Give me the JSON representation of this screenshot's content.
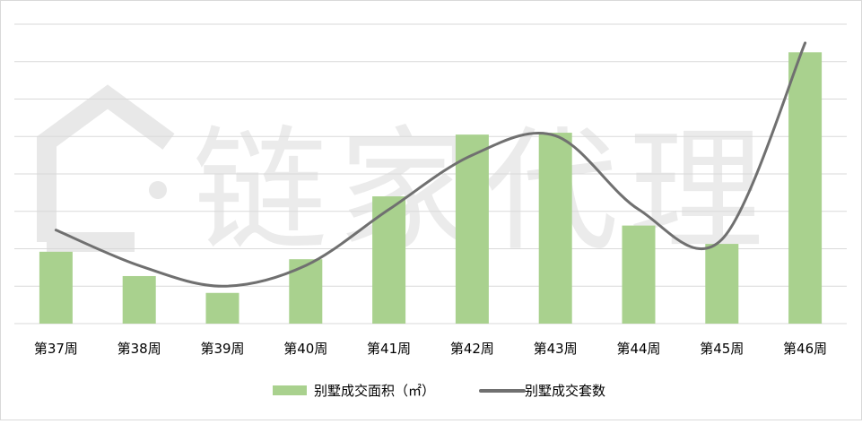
{
  "watermark": {
    "text": "链家代理",
    "icon": "house-outline-icon"
  },
  "legend": {
    "bar_label": "别墅成交面积（㎡）",
    "line_label": "别墅成交套数"
  },
  "colors": {
    "bar": "#a9d18e",
    "line": "#707070",
    "grid": "#d9d9d9",
    "axis_text": "#000000",
    "watermark": "#e6e6e6"
  },
  "chart_data": {
    "type": "bar",
    "categories": [
      "第37周",
      "第38周",
      "第39周",
      "第40周",
      "第41周",
      "第42周",
      "第43周",
      "第44周",
      "第45周",
      "第46周"
    ],
    "series": [
      {
        "name": "别墅成交面积（㎡）",
        "type": "bar",
        "values": [
          1.92,
          1.27,
          0.82,
          1.72,
          3.4,
          5.05,
          5.1,
          2.62,
          2.13,
          7.25
        ]
      },
      {
        "name": "别墅成交套数",
        "type": "line",
        "smooth": true,
        "values": [
          2.5,
          1.55,
          1.0,
          1.55,
          3.05,
          4.5,
          5.02,
          3.05,
          2.25,
          7.5
        ]
      }
    ],
    "ylim": [
      0,
      8
    ],
    "grid": true,
    "y_ticks_shown": false,
    "legend_position": "bottom"
  }
}
